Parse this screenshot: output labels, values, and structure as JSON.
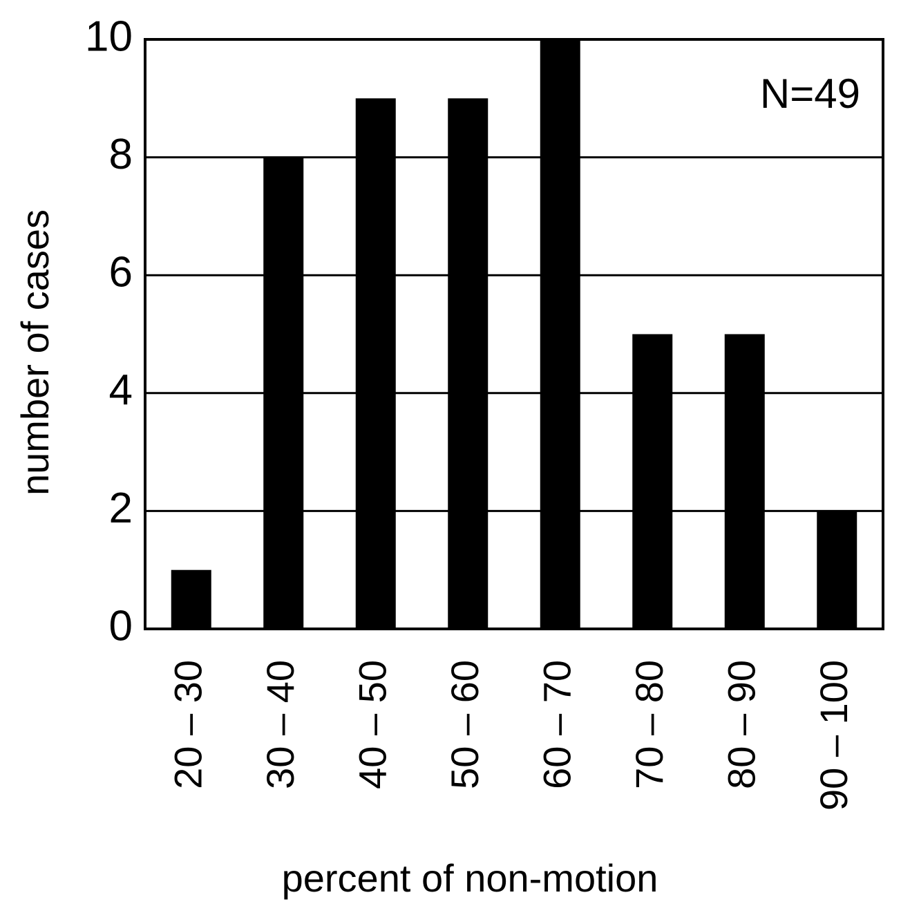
{
  "chart_data": {
    "type": "bar",
    "x_label": "percent of non-motion",
    "y_label": "number of cases",
    "annotation": "N=49",
    "categories": [
      "20 – 30",
      "30 – 40",
      "40 – 50",
      "50 – 60",
      "60 – 70",
      "70 – 80",
      "80 – 90",
      "90 – 100"
    ],
    "values": [
      1,
      8,
      9,
      9,
      10,
      5,
      5,
      2
    ],
    "color": "#000000",
    "ylim": [
      0,
      10
    ],
    "yticks": [
      0,
      2,
      4,
      6,
      8,
      10
    ],
    "grid": true
  }
}
